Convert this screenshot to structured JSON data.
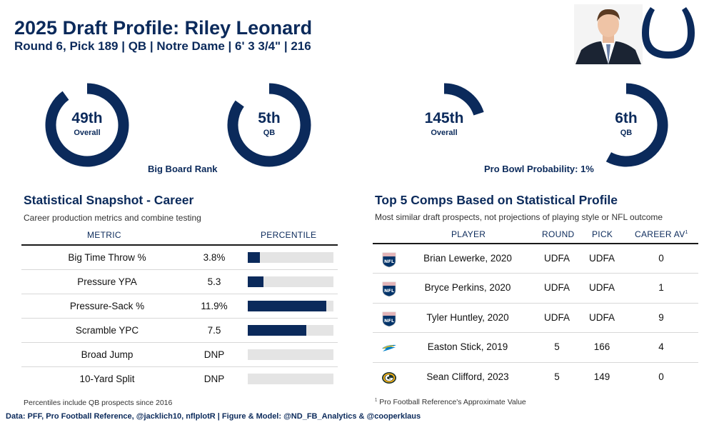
{
  "header": {
    "title": "2025 Draft Profile: Riley Leonard",
    "subtitle": "Round 6, Pick 189 | QB | Notre Dame | 6' 3 3/4\" | 216"
  },
  "colors": {
    "navy": "#0b2a5b",
    "track": "#e4e4e4"
  },
  "icons": {
    "team_logo": "colts-horseshoe-icon",
    "headshot": "player-headshot"
  },
  "big_board": {
    "caption": "Big Board Rank",
    "overall": {
      "value": "49th",
      "label": "Overall",
      "fill": 0.9
    },
    "position": {
      "value": "5th",
      "label": "QB",
      "fill": 0.85
    }
  },
  "pro_bowl": {
    "caption": "Pro Bowl Probability: 1%",
    "overall": {
      "value": "145th",
      "label": "Overall",
      "fill": 0.2
    },
    "position": {
      "value": "6th",
      "label": "QB",
      "fill": 0.58
    }
  },
  "snapshot": {
    "title": "Statistical Snapshot - Career",
    "subtitle": "Career production metrics and combine testing",
    "col_metric": "METRIC",
    "col_percentile": "PERCENTILE",
    "rows": [
      {
        "metric": "Big Time Throw %",
        "value": "3.8%",
        "percentile": 14
      },
      {
        "metric": "Pressure YPA",
        "value": "5.3",
        "percentile": 18
      },
      {
        "metric": "Pressure-Sack %",
        "value": "11.9%",
        "percentile": 92
      },
      {
        "metric": "Scramble YPC",
        "value": "7.5",
        "percentile": 68
      },
      {
        "metric": "Broad Jump",
        "value": "DNP",
        "percentile": 0
      },
      {
        "metric": "10-Yard Split",
        "value": "DNP",
        "percentile": 0
      }
    ],
    "footnote": "Percentiles include QB prospects since 2016"
  },
  "comps": {
    "title": "Top 5 Comps Based on Statistical Profile",
    "subtitle": "Most similar draft prospects, not projections of playing style or NFL outcome",
    "col_player": "PLAYER",
    "col_round": "ROUND",
    "col_pick": "PICK",
    "col_av": "CAREER AV",
    "col_av_sup": "1",
    "rows": [
      {
        "logo": "nfl-shield-icon",
        "player": "Brian Lewerke, 2020",
        "round": "UDFA",
        "pick": "UDFA",
        "av": "0"
      },
      {
        "logo": "nfl-shield-icon",
        "player": "Bryce Perkins, 2020",
        "round": "UDFA",
        "pick": "UDFA",
        "av": "1"
      },
      {
        "logo": "nfl-shield-icon",
        "player": "Tyler Huntley, 2020",
        "round": "UDFA",
        "pick": "UDFA",
        "av": "9"
      },
      {
        "logo": "chargers-bolt-icon",
        "player": "Easton Stick, 2019",
        "round": "5",
        "pick": "166",
        "av": "4"
      },
      {
        "logo": "packers-g-icon",
        "player": "Sean Clifford, 2023",
        "round": "5",
        "pick": "149",
        "av": "0"
      }
    ],
    "footnote_sup": "1",
    "footnote": "Pro Football Reference's Approximate Value"
  },
  "credits": "Data: PFF, Pro Football Reference, @jacklich10, nflplotR | Figure & Model: @ND_FB_Analytics & @cooperklaus"
}
